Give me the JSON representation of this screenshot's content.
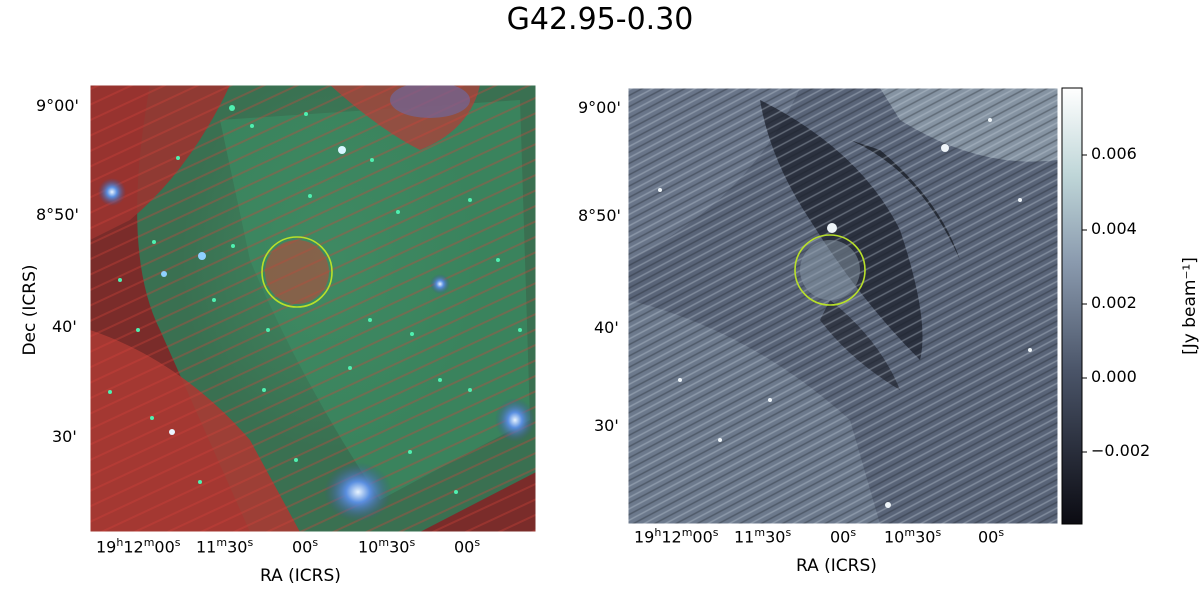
{
  "title": "G42.95-0.30",
  "panels": {
    "left": {
      "xlabel": "RA (ICRS)",
      "ylabel": "Dec (ICRS)",
      "dec_ticks": [
        "9°00'",
        "8°50'",
        "40'",
        "30'"
      ],
      "ra_ticks": [
        {
          "main": "19",
          "u1": "h",
          "m": "12",
          "u2": "m",
          "s": "00",
          "u3": "s"
        },
        {
          "main": "11",
          "u1": "m",
          "m": "30",
          "u2": "s"
        },
        {
          "main": "00",
          "u1": "s"
        },
        {
          "main": "10",
          "u1": "m",
          "m": "30",
          "u2": "s"
        },
        {
          "main": "00",
          "u1": "s"
        }
      ]
    },
    "right": {
      "xlabel": "RA (ICRS)",
      "dec_ticks": [
        "9°00'",
        "8°50'",
        "40'",
        "30'"
      ],
      "colorbar_label": "[Jy beam⁻¹]",
      "colorbar_ticks": [
        "0.006",
        "0.004",
        "0.002",
        "0.000",
        "−0.002"
      ]
    }
  },
  "colors": {
    "circle": "#b8e02a",
    "rgb_red": "#c0392b",
    "rgb_green": "#2e7d5b"
  }
}
